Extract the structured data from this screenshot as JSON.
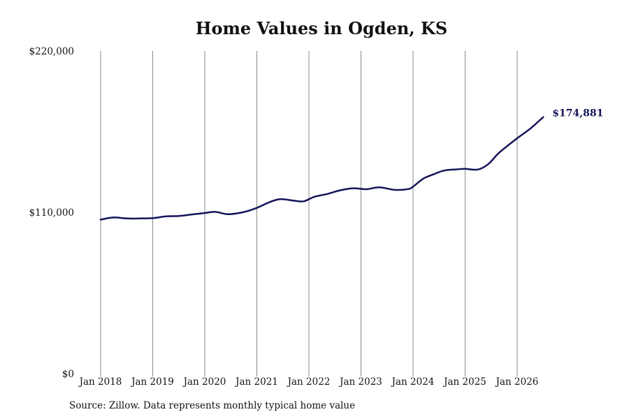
{
  "chart_data": {
    "type": "line",
    "title": "Home Values in Ogden, KS",
    "xlabel": "",
    "ylabel": "",
    "ylim": [
      0,
      220000
    ],
    "y_ticks": [
      {
        "value": 0,
        "label": "$0"
      },
      {
        "value": 110000,
        "label": "$110,000"
      },
      {
        "value": 220000,
        "label": "$220,000"
      }
    ],
    "x_ticks": [
      {
        "value": 2018,
        "label": "Jan 2018"
      },
      {
        "value": 2019,
        "label": "Jan 2019"
      },
      {
        "value": 2020,
        "label": "Jan 2020"
      },
      {
        "value": 2021,
        "label": "Jan 2021"
      },
      {
        "value": 2022,
        "label": "Jan 2022"
      },
      {
        "value": 2023,
        "label": "Jan 2023"
      },
      {
        "value": 2024,
        "label": "Jan 2024"
      },
      {
        "value": 2025,
        "label": "Jan 2025"
      },
      {
        "value": 2026,
        "label": "Jan 2026"
      }
    ],
    "xlim": [
      2018,
      2026.5
    ],
    "grid": "vertical",
    "series": [
      {
        "color": "#14145a",
        "end_label": "$174,881",
        "points": [
          {
            "x": 2018.0,
            "y": 105000
          },
          {
            "x": 2018.25,
            "y": 106500
          },
          {
            "x": 2018.5,
            "y": 105800
          },
          {
            "x": 2018.75,
            "y": 105800
          },
          {
            "x": 2019.0,
            "y": 106000
          },
          {
            "x": 2019.25,
            "y": 107200
          },
          {
            "x": 2019.5,
            "y": 107500
          },
          {
            "x": 2019.75,
            "y": 108500
          },
          {
            "x": 2020.0,
            "y": 109500
          },
          {
            "x": 2020.2,
            "y": 110300
          },
          {
            "x": 2020.45,
            "y": 108700
          },
          {
            "x": 2020.75,
            "y": 110200
          },
          {
            "x": 2021.0,
            "y": 113000
          },
          {
            "x": 2021.25,
            "y": 117000
          },
          {
            "x": 2021.45,
            "y": 119000
          },
          {
            "x": 2021.7,
            "y": 118000
          },
          {
            "x": 2021.9,
            "y": 117500
          },
          {
            "x": 2022.1,
            "y": 120500
          },
          {
            "x": 2022.35,
            "y": 122500
          },
          {
            "x": 2022.6,
            "y": 125000
          },
          {
            "x": 2022.85,
            "y": 126400
          },
          {
            "x": 2023.1,
            "y": 125700
          },
          {
            "x": 2023.35,
            "y": 127000
          },
          {
            "x": 2023.65,
            "y": 125300
          },
          {
            "x": 2023.9,
            "y": 125800
          },
          {
            "x": 2024.0,
            "y": 127500
          },
          {
            "x": 2024.2,
            "y": 133000
          },
          {
            "x": 2024.4,
            "y": 136000
          },
          {
            "x": 2024.6,
            "y": 138500
          },
          {
            "x": 2024.85,
            "y": 139300
          },
          {
            "x": 2025.0,
            "y": 139600
          },
          {
            "x": 2025.25,
            "y": 139200
          },
          {
            "x": 2025.45,
            "y": 143000
          },
          {
            "x": 2025.65,
            "y": 150500
          },
          {
            "x": 2026.0,
            "y": 160500
          },
          {
            "x": 2026.25,
            "y": 167000
          },
          {
            "x": 2026.5,
            "y": 174881
          }
        ]
      }
    ]
  },
  "source_note": "Source: Zillow. Data represents monthly typical home value"
}
